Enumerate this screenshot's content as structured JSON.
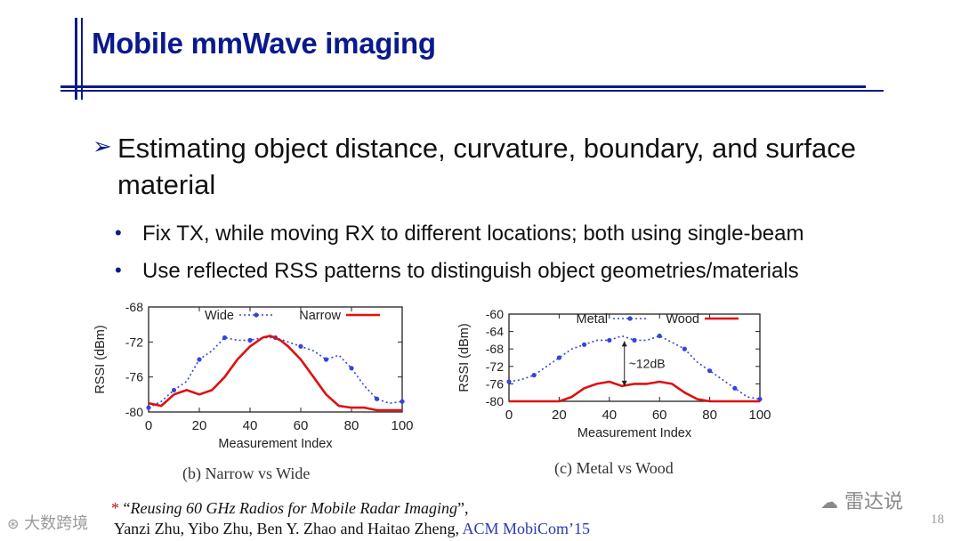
{
  "slide": {
    "title": "Mobile mmWave imaging",
    "page_number": "18",
    "bullet": "Estimating object distance, curvature, boundary, and surface material",
    "sub_bullets": [
      "Fix TX, while moving RX to different locations; both using single-beam",
      "Use reflected RSS patterns to distinguish object geometries/materials"
    ],
    "reference": {
      "star": "*",
      "quote_open": "“",
      "paper_title": "Reusing 60 GHz Radios for Mobile Radar Imaging",
      "quote_close": "”,",
      "authors": "Yanzi Zhu, Yibo Zhu, Ben Y. Zhao and Haitao Zheng,",
      "venue": "ACM MobiCom’15"
    },
    "watermark_left": "大数跨境",
    "watermark_right": "雷达说",
    "colors": {
      "title": "#0a1a8c",
      "series_blue": "#3344dd",
      "series_red": "#dd1111"
    }
  },
  "chart_data": [
    {
      "type": "line",
      "caption": "(b) Narrow vs Wide",
      "xlabel": "Measurement Index",
      "ylabel": "RSSI (dBm)",
      "xlim": [
        0,
        100
      ],
      "ylim": [
        -80,
        -68
      ],
      "xticks": [
        "0",
        "20",
        "40",
        "60",
        "80",
        "100"
      ],
      "yticks": [
        "-68",
        "-72",
        "-76",
        "-80"
      ],
      "legend_position": "top",
      "series": [
        {
          "name": "Wide",
          "style": "dotted-marker",
          "color": "#3344dd",
          "x": [
            0,
            5,
            10,
            15,
            20,
            25,
            30,
            35,
            40,
            45,
            50,
            55,
            60,
            65,
            70,
            75,
            80,
            85,
            90,
            95,
            100
          ],
          "y": [
            -79.5,
            -78.8,
            -77.5,
            -76.5,
            -74,
            -73,
            -71.5,
            -71.8,
            -71.8,
            -71.5,
            -71.5,
            -72,
            -72.5,
            -73,
            -74,
            -73.5,
            -75,
            -77,
            -78.5,
            -79,
            -78.8
          ]
        },
        {
          "name": "Narrow",
          "style": "solid",
          "color": "#dd1111",
          "x": [
            0,
            5,
            10,
            15,
            20,
            25,
            30,
            35,
            40,
            45,
            48,
            52,
            55,
            60,
            65,
            70,
            75,
            80,
            85,
            90,
            95,
            100
          ],
          "y": [
            -79,
            -79.3,
            -78,
            -77.5,
            -78,
            -77.5,
            -76,
            -74,
            -72.5,
            -71.5,
            -71.3,
            -71.8,
            -72.5,
            -74,
            -76,
            -78,
            -79.3,
            -79.5,
            -79.5,
            -79.8,
            -79.8,
            -79.8
          ]
        }
      ]
    },
    {
      "type": "line",
      "caption": "(c) Metal vs Wood",
      "xlabel": "Measurement Index",
      "ylabel": "RSSI (dBm)",
      "xlim": [
        0,
        100
      ],
      "ylim": [
        -80,
        -60
      ],
      "xticks": [
        "0",
        "20",
        "40",
        "60",
        "80",
        "100"
      ],
      "yticks": [
        "-60",
        "-64",
        "-68",
        "-72",
        "-76",
        "-80"
      ],
      "legend_position": "top",
      "annotation": "~12dB",
      "series": [
        {
          "name": "Metal",
          "style": "dotted-marker",
          "color": "#3344dd",
          "x": [
            0,
            5,
            10,
            15,
            20,
            25,
            30,
            35,
            40,
            45,
            50,
            55,
            60,
            65,
            70,
            75,
            80,
            85,
            90,
            95,
            100
          ],
          "y": [
            -75.5,
            -75,
            -74,
            -72,
            -70,
            -68,
            -67,
            -66,
            -66,
            -65,
            -66,
            -66,
            -65,
            -66.5,
            -68,
            -71,
            -73,
            -75,
            -77,
            -79,
            -79.5
          ]
        },
        {
          "name": "Wood",
          "style": "solid",
          "color": "#dd1111",
          "x": [
            0,
            5,
            10,
            15,
            20,
            25,
            30,
            35,
            40,
            45,
            50,
            55,
            60,
            65,
            70,
            75,
            80,
            85,
            90,
            95,
            100
          ],
          "y": [
            -80,
            -80,
            -80,
            -80,
            -80,
            -79,
            -77,
            -76,
            -75.5,
            -76.5,
            -76,
            -76,
            -75.5,
            -76,
            -78,
            -79.5,
            -80,
            -80,
            -80,
            -80,
            -80
          ]
        }
      ]
    }
  ]
}
